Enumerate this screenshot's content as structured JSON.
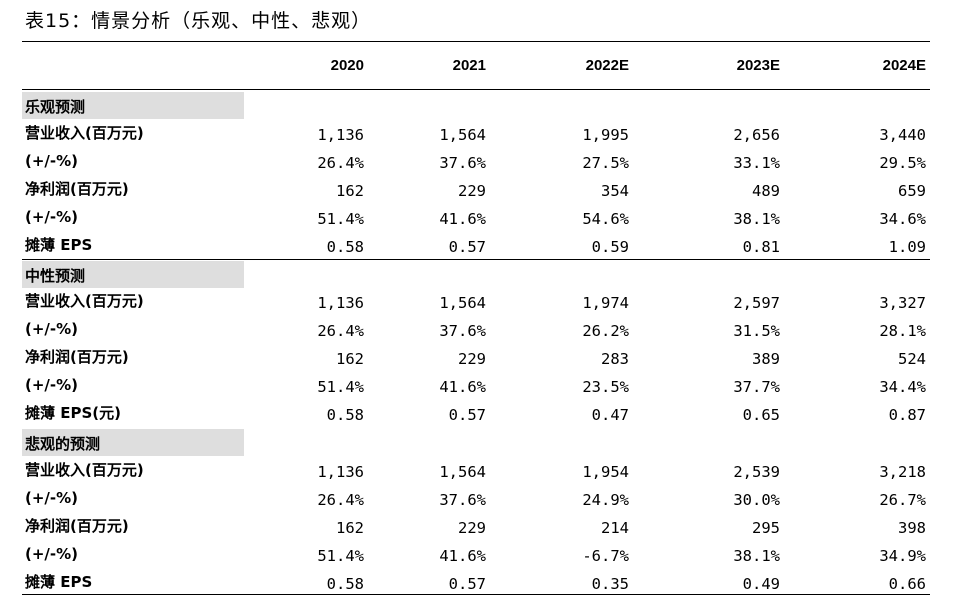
{
  "title": "表15：情景分析（乐观、中性、悲观）",
  "years": [
    "2020",
    "2021",
    "2022E",
    "2023E",
    "2024E"
  ],
  "sections": [
    {
      "name": "乐观预测",
      "rows": [
        {
          "label": "营业收入(百万元)",
          "values": [
            "1,136",
            "1,564",
            "1,995",
            "2,656",
            "3,440"
          ]
        },
        {
          "label": "(+/-%)",
          "values": [
            "26.4%",
            "37.6%",
            "27.5%",
            "33.1%",
            "29.5%"
          ]
        },
        {
          "label": "净利润(百万元)",
          "values": [
            "162",
            "229",
            "354",
            "489",
            "659"
          ]
        },
        {
          "label": "(+/-%)",
          "values": [
            "51.4%",
            "41.6%",
            "54.6%",
            "38.1%",
            "34.6%"
          ]
        },
        {
          "label": "摊薄 EPS",
          "values": [
            "0.58",
            "0.57",
            "0.59",
            "0.81",
            "1.09"
          ]
        }
      ]
    },
    {
      "name": "中性预测",
      "rows": [
        {
          "label": "营业收入(百万元)",
          "values": [
            "1,136",
            "1,564",
            "1,974",
            "2,597",
            "3,327"
          ]
        },
        {
          "label": "(+/-%)",
          "values": [
            "26.4%",
            "37.6%",
            "26.2%",
            "31.5%",
            "28.1%"
          ]
        },
        {
          "label": "净利润(百万元)",
          "values": [
            "162",
            "229",
            "283",
            "389",
            "524"
          ]
        },
        {
          "label": "(+/-%)",
          "values": [
            "51.4%",
            "41.6%",
            "23.5%",
            "37.7%",
            "34.4%"
          ]
        },
        {
          "label": "摊薄 EPS(元)",
          "values": [
            "0.58",
            "0.57",
            "0.47",
            "0.65",
            "0.87"
          ]
        }
      ]
    },
    {
      "name": "悲观的预测",
      "rows": [
        {
          "label": "营业收入(百万元)",
          "values": [
            "1,136",
            "1,564",
            "1,954",
            "2,539",
            "3,218"
          ]
        },
        {
          "label": "(+/-%)",
          "values": [
            "26.4%",
            "37.6%",
            "24.9%",
            "30.0%",
            "26.7%"
          ]
        },
        {
          "label": "净利润(百万元)",
          "values": [
            "162",
            "229",
            "214",
            "295",
            "398"
          ]
        },
        {
          "label": "(+/-%)",
          "values": [
            "51.4%",
            "41.6%",
            "-6.7%",
            "38.1%",
            "34.9%"
          ]
        },
        {
          "label": "摊薄 EPS",
          "values": [
            "0.58",
            "0.57",
            "0.35",
            "0.49",
            "0.66"
          ]
        }
      ]
    }
  ]
}
